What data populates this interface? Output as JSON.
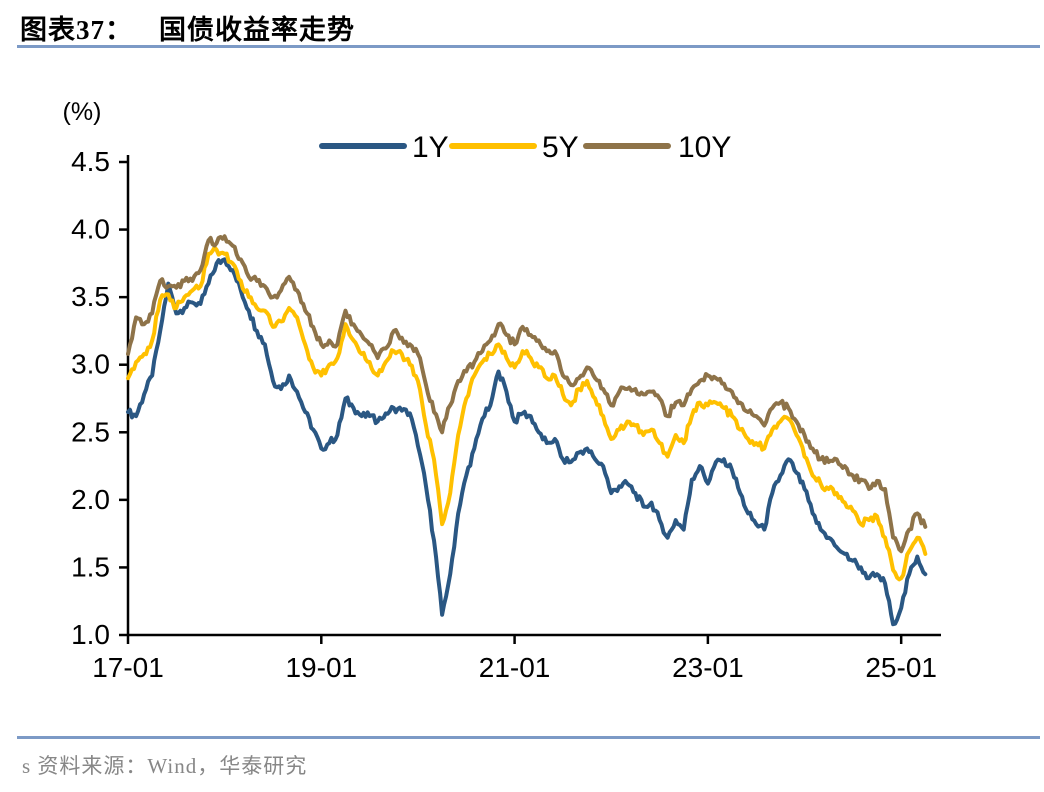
{
  "figure": {
    "index_label": "图表37：",
    "title": "国债收益率走势"
  },
  "source_note": "s 资料来源：Wind，华泰研究",
  "colors": {
    "rule_blue": "#7c9ac6",
    "axis": "#000000",
    "tick_text": "#000000",
    "source_text": "#878787",
    "series_1y": "#2a5783",
    "series_5y": "#ffc000",
    "series_10y": "#8e7349"
  },
  "chart_data": {
    "type": "line",
    "title": "国债收益率走势",
    "unit_label": "(%)",
    "legend_position": "top-center",
    "grid": false,
    "ylim": [
      1.0,
      4.5
    ],
    "ytick_step": 0.5,
    "xlim": [
      2017.0,
      2025.35
    ],
    "x_start": 2017.0,
    "x_step": 0.0833333,
    "xticks": [
      {
        "pos": 2017.0,
        "label": "17-01"
      },
      {
        "pos": 2019.0,
        "label": "19-01"
      },
      {
        "pos": 2021.0,
        "label": "21-01"
      },
      {
        "pos": 2023.0,
        "label": "23-01"
      },
      {
        "pos": 2025.0,
        "label": "25-01"
      }
    ],
    "series": [
      {
        "name": "1Y",
        "color": "#2a5783",
        "values": [
          2.65,
          2.62,
          2.78,
          2.92,
          3.25,
          3.6,
          3.38,
          3.42,
          3.46,
          3.45,
          3.6,
          3.75,
          3.78,
          3.7,
          3.55,
          3.4,
          3.25,
          3.15,
          2.88,
          2.82,
          2.92,
          2.8,
          2.65,
          2.52,
          2.38,
          2.42,
          2.48,
          2.75,
          2.68,
          2.62,
          2.62,
          2.58,
          2.64,
          2.68,
          2.66,
          2.64,
          2.4,
          2.1,
          1.7,
          1.15,
          1.45,
          1.9,
          2.18,
          2.38,
          2.6,
          2.7,
          2.95,
          2.8,
          2.58,
          2.64,
          2.62,
          2.5,
          2.42,
          2.45,
          2.3,
          2.28,
          2.35,
          2.38,
          2.3,
          2.25,
          2.05,
          2.1,
          2.12,
          2.05,
          1.95,
          1.98,
          1.85,
          1.72,
          1.85,
          1.78,
          2.15,
          2.25,
          2.12,
          2.28,
          2.3,
          2.22,
          2.05,
          1.9,
          1.82,
          1.78,
          2.05,
          2.18,
          2.3,
          2.2,
          2.08,
          1.9,
          1.78,
          1.72,
          1.65,
          1.6,
          1.55,
          1.5,
          1.42,
          1.45,
          1.38,
          1.08,
          1.2,
          1.45,
          1.58,
          1.45
        ]
      },
      {
        "name": "5Y",
        "color": "#ffc000",
        "values": [
          2.9,
          3.02,
          3.08,
          3.18,
          3.48,
          3.52,
          3.42,
          3.5,
          3.55,
          3.58,
          3.82,
          3.85,
          3.82,
          3.75,
          3.62,
          3.5,
          3.42,
          3.4,
          3.28,
          3.32,
          3.42,
          3.35,
          3.15,
          2.98,
          2.92,
          3.0,
          3.05,
          3.3,
          3.18,
          3.08,
          3.02,
          2.92,
          3.02,
          3.1,
          3.08,
          3.0,
          2.88,
          2.55,
          2.3,
          1.82,
          2.05,
          2.48,
          2.75,
          2.92,
          3.02,
          3.08,
          3.15,
          3.05,
          2.98,
          3.1,
          3.05,
          2.98,
          2.9,
          2.92,
          2.78,
          2.7,
          2.82,
          2.88,
          2.75,
          2.62,
          2.45,
          2.52,
          2.58,
          2.55,
          2.48,
          2.52,
          2.42,
          2.32,
          2.48,
          2.42,
          2.62,
          2.72,
          2.7,
          2.72,
          2.68,
          2.62,
          2.52,
          2.45,
          2.42,
          2.38,
          2.52,
          2.58,
          2.6,
          2.48,
          2.32,
          2.18,
          2.12,
          2.08,
          2.05,
          1.98,
          1.92,
          1.82,
          1.85,
          1.88,
          1.72,
          1.48,
          1.42,
          1.62,
          1.72,
          1.6
        ]
      },
      {
        "name": "10Y",
        "color": "#8e7349",
        "values": [
          3.08,
          3.35,
          3.3,
          3.38,
          3.62,
          3.58,
          3.57,
          3.62,
          3.62,
          3.7,
          3.92,
          3.9,
          3.95,
          3.88,
          3.78,
          3.65,
          3.62,
          3.58,
          3.5,
          3.55,
          3.65,
          3.55,
          3.4,
          3.28,
          3.15,
          3.18,
          3.15,
          3.4,
          3.3,
          3.22,
          3.15,
          3.05,
          3.12,
          3.25,
          3.2,
          3.15,
          3.08,
          2.85,
          2.65,
          2.5,
          2.7,
          2.88,
          2.95,
          3.02,
          3.1,
          3.18,
          3.3,
          3.22,
          3.15,
          3.28,
          3.22,
          3.18,
          3.1,
          3.1,
          2.92,
          2.85,
          2.9,
          2.98,
          2.9,
          2.82,
          2.7,
          2.8,
          2.82,
          2.82,
          2.78,
          2.8,
          2.75,
          2.62,
          2.72,
          2.7,
          2.82,
          2.88,
          2.92,
          2.9,
          2.86,
          2.8,
          2.72,
          2.65,
          2.62,
          2.55,
          2.68,
          2.72,
          2.68,
          2.58,
          2.48,
          2.38,
          2.3,
          2.28,
          2.3,
          2.25,
          2.18,
          2.15,
          2.08,
          2.14,
          2.08,
          1.72,
          1.62,
          1.78,
          1.9,
          1.8
        ]
      }
    ]
  }
}
